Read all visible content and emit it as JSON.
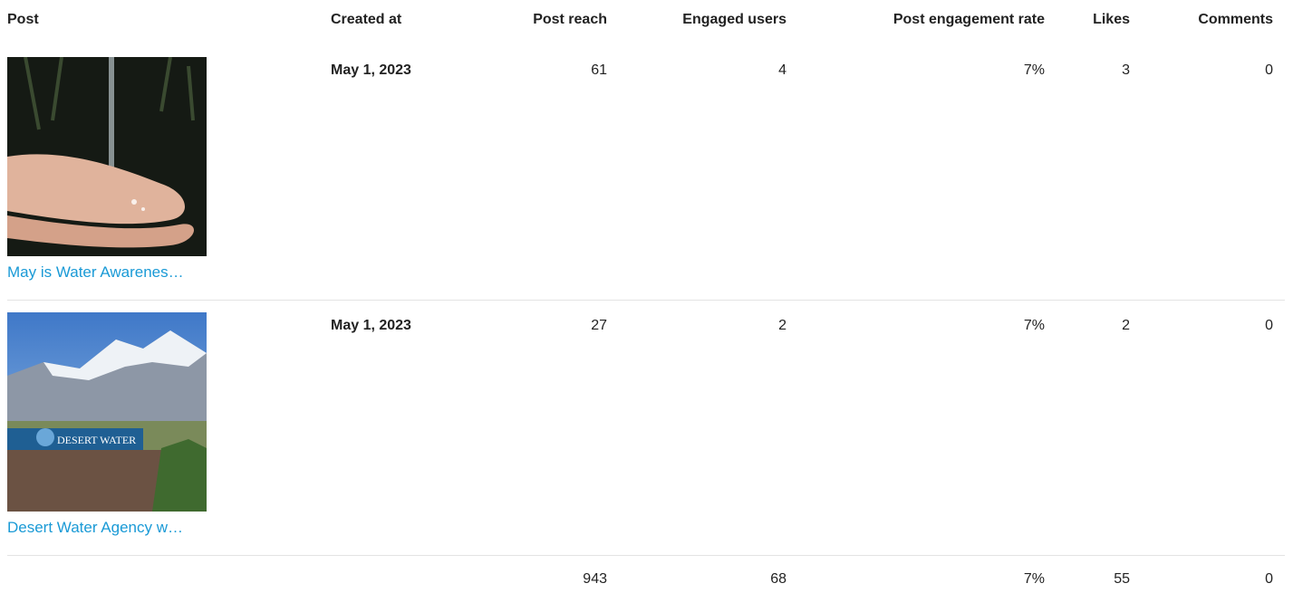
{
  "header": [
    "Post",
    "Created at",
    "Post reach",
    "Engaged users",
    "Post engagement rate",
    "Likes",
    "Comments"
  ],
  "rows": [
    {
      "title": "May is Water Awarenes…",
      "created_at": "May 1, 2023",
      "cells": [
        "61",
        "4",
        "7%",
        "3",
        "0"
      ]
    },
    {
      "title": "Desert Water Agency w…",
      "image_text": "DESERT WATER",
      "created_at": "May 1, 2023",
      "cells": [
        "27",
        "2",
        "7%",
        "2",
        "0"
      ]
    }
  ],
  "totals": [
    "943",
    "68",
    "7%",
    "55",
    "0"
  ]
}
